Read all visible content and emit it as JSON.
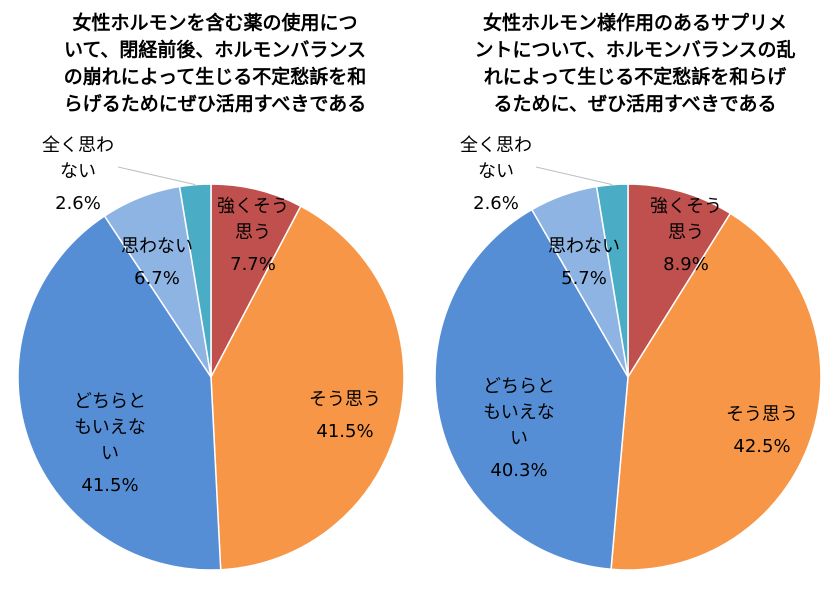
{
  "chart_data": [
    {
      "type": "pie",
      "title": "女性ホルモンを含む薬の使用につ\nいて、閉経前後、ホルモンバランス\nの崩れによって生じる不定愁訴を和\nらげるためにぜひ活用すべきである",
      "start_angle": "12 o'clock, clockwise",
      "categories": [
        "強くそう思う",
        "そう思う",
        "どちらともいえない",
        "思わない",
        "全く思わない"
      ],
      "values": [
        7.7,
        41.5,
        41.5,
        6.7,
        2.6
      ],
      "value_labels": [
        "7.7%",
        "41.5%",
        "41.5%",
        "6.7%",
        "2.6%"
      ],
      "label_lines": [
        [
          "強くそう",
          "思う"
        ],
        [
          "そう思う"
        ],
        [
          "どちらと",
          "もいえな",
          "い"
        ],
        [
          "思わない"
        ],
        [
          "全く思わ",
          "ない"
        ]
      ],
      "colors": [
        "#c0504d",
        "#f79646",
        "#558ed5",
        "#8eb4e3",
        "#4bacc6"
      ]
    },
    {
      "type": "pie",
      "title": "女性ホルモン様作用のあるサプリメ\nントについて、ホルモンバランスの乱\nれによって生じる不定愁訴を和らげ\nるために、ぜひ活用すべきである",
      "start_angle": "12 o'clock, clockwise",
      "categories": [
        "強くそう思う",
        "そう思う",
        "どちらともいえない",
        "思わない",
        "全く思わない"
      ],
      "values": [
        8.9,
        42.5,
        40.3,
        5.7,
        2.6
      ],
      "value_labels": [
        "8.9%",
        "42.5%",
        "40.3%",
        "5.7%",
        "2.6%"
      ],
      "label_lines": [
        [
          "強くそう",
          "思う"
        ],
        [
          "そう思う"
        ],
        [
          "どちらと",
          "もいえな",
          "い"
        ],
        [
          "思わない"
        ],
        [
          "全く思わ",
          "ない"
        ]
      ],
      "colors": [
        "#c0504d",
        "#f79646",
        "#558ed5",
        "#8eb4e3",
        "#4bacc6"
      ]
    }
  ]
}
